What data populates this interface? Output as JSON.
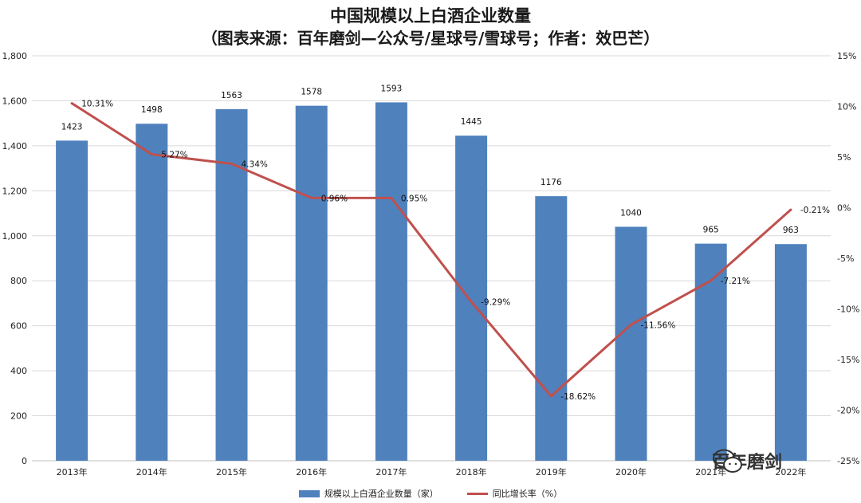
{
  "chart_data": {
    "type": "bar+line",
    "title": "中国规模以上白酒企业数量",
    "subtitle": "（图表来源：百年磨剑—公众号/星球号/雪球号；作者：效巴芒）",
    "categories": [
      "2013年",
      "2014年",
      "2015年",
      "2016年",
      "2017年",
      "2018年",
      "2019年",
      "2020年",
      "2021年",
      "2022年"
    ],
    "series": [
      {
        "name": "规模以上白酒企业数量（家）",
        "type": "bar",
        "axis": "left",
        "values": [
          1423,
          1498,
          1563,
          1578,
          1593,
          1445,
          1176,
          1040,
          965,
          963
        ],
        "labels": [
          "1423",
          "1498",
          "1563",
          "1578",
          "1593",
          "1445",
          "1176",
          "1040",
          "965",
          "963"
        ]
      },
      {
        "name": "同比增长率（%）",
        "type": "line",
        "axis": "right",
        "values": [
          10.31,
          5.27,
          4.34,
          0.96,
          0.95,
          -9.29,
          -18.62,
          -11.56,
          -7.21,
          -0.21
        ],
        "labels": [
          "10.31%",
          "5.27%",
          "4.34%",
          "0.96%",
          "0.95%",
          "-9.29%",
          "-18.62%",
          "-11.56%",
          "-7.21%",
          "-0.21%"
        ]
      }
    ],
    "ylim_left": [
      0,
      1800
    ],
    "ylim_right": [
      -25,
      15
    ],
    "yticks_left": [
      0,
      200,
      400,
      600,
      800,
      1000,
      1200,
      1400,
      1600,
      1800
    ],
    "yticks_left_labels": [
      "0",
      "200",
      "400",
      "600",
      "800",
      "1,000",
      "1,200",
      "1,400",
      "1,600",
      "1,800"
    ],
    "yticks_right": [
      15,
      10,
      5,
      0,
      -5,
      -10,
      -15,
      -20,
      -25
    ],
    "yticks_right_labels": [
      "15%",
      "10%",
      "5%",
      "0%",
      "-5%",
      "-10%",
      "-15%",
      "-20%",
      "-25%"
    ],
    "grid": true,
    "legend": "bottom-center",
    "colors": {
      "bar": "#4f81bd",
      "line": "#c0504d",
      "grid": "#d9d9d9"
    }
  },
  "watermark": {
    "text": "百年磨剑",
    "icon": "wechat-icon"
  }
}
